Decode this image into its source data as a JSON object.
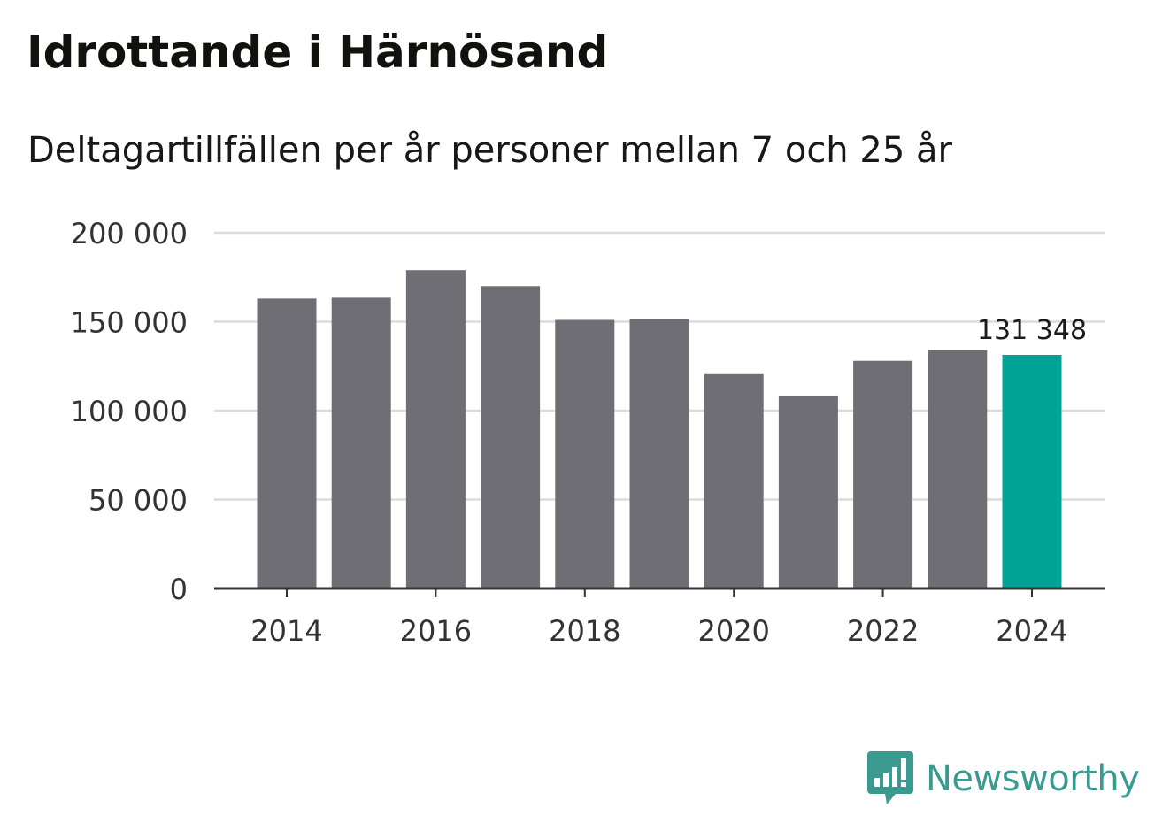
{
  "header": {
    "title": "Idrottande i Härnösand",
    "subtitle": "Deltagartillfällen per år personer mellan 7 och 25 år"
  },
  "brand": {
    "name": "Newsworthy",
    "logo_icon": "newsworthy-bar-chart-icon",
    "color": "#3b9a8f"
  },
  "chart_data": {
    "type": "bar",
    "x": [
      2014,
      2015,
      2016,
      2017,
      2018,
      2019,
      2020,
      2021,
      2022,
      2023,
      2024
    ],
    "values": [
      163000,
      163500,
      179000,
      170000,
      151000,
      151500,
      120500,
      108000,
      128000,
      134000,
      131348
    ],
    "ylim": [
      0,
      200000
    ],
    "yticks": [
      0,
      50000,
      100000,
      150000,
      200000
    ],
    "ytick_labels": [
      "0",
      "50 000",
      "100 000",
      "150 000",
      "200 000"
    ],
    "xticks": [
      2014,
      2016,
      2018,
      2020,
      2022,
      2024
    ],
    "xtick_labels": [
      "2014",
      "2016",
      "2018",
      "2020",
      "2022",
      "2024"
    ],
    "highlight_index": 10,
    "highlight_label": "131 348",
    "grid": true,
    "colors": {
      "bar": "#6f6e75",
      "highlight": "#00a396",
      "grid": "#dcdcdc",
      "axis": "#333333"
    }
  }
}
